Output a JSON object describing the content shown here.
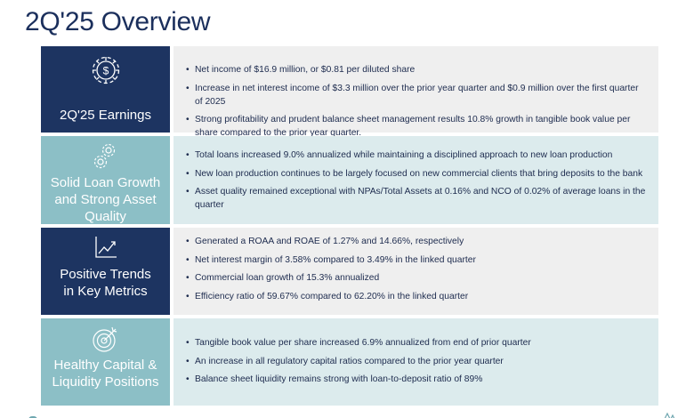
{
  "page": {
    "title": "2Q'25 Overview"
  },
  "colors": {
    "navy": "#1d3461",
    "teal": "#8cbfc6",
    "light_gray": "#efefef",
    "light_teal": "#dcebed",
    "title": "#1b2f5c"
  },
  "sections": [
    {
      "label": "2Q'25 Earnings",
      "icon": "dollar-gear-icon",
      "bullets": [
        "Net income of $16.9 million, or $0.81 per diluted share",
        "Increase in net interest income of $3.3 million over the prior year quarter and $0.9 million over the first quarter of 2025",
        "Strong profitability and prudent balance sheet management results 10.8% growth in tangible book value per share compared to the prior year quarter."
      ]
    },
    {
      "label": "Solid Loan Growth and Strong Asset Quality",
      "icon": "gears-icon",
      "bullets": [
        "Total loans increased 9.0% annualized while maintaining a disciplined approach to new loan production",
        "New loan production continues to be largely focused on new commercial clients that bring deposits to the bank",
        "Asset quality remained exceptional with NPAs/Total Assets at 0.16% and NCO of 0.02% of average loans in the quarter"
      ]
    },
    {
      "label": "Positive Trends in Key Metrics",
      "icon": "trend-chart-icon",
      "bullets": [
        "Generated a ROAA and ROAE of 1.27% and 14.66%, respectively",
        "Net interest margin of 3.58% compared to 3.49% in the linked quarter",
        "Commercial loan growth of 15.3% annualized",
        "Efficiency ratio of 59.67% compared to 62.20% in the linked quarter"
      ]
    },
    {
      "label": "Healthy Capital & Liquidity Positions",
      "icon": "target-icon",
      "bullets": [
        "Tangible book value per share increased 6.9% annualized from end of prior quarter",
        "An increase in all regulatory capital ratios compared to the prior year quarter",
        "Balance sheet liquidity remains strong with loan-to-deposit ratio of 89%"
      ]
    }
  ]
}
